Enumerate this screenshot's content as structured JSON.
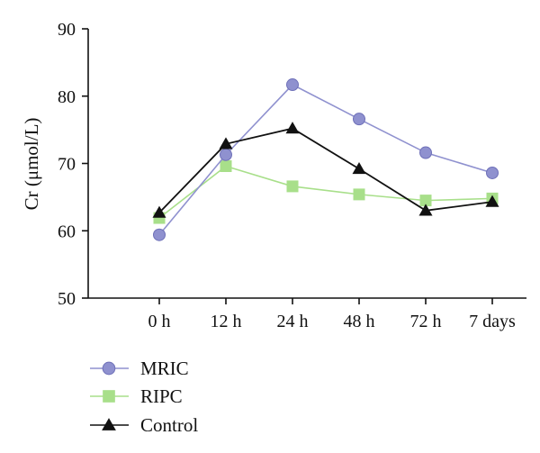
{
  "chart_data": {
    "type": "line",
    "title": "",
    "xlabel": "",
    "ylabel": "Cr (μmol/L)",
    "categories": [
      "0 h",
      "12 h",
      "24 h",
      "48 h",
      "72 h",
      "7 days"
    ],
    "ylim": [
      50,
      90
    ],
    "yticks": [
      50,
      60,
      70,
      80,
      90
    ],
    "grid": false,
    "legend_position": "bottom-left",
    "series": [
      {
        "name": "MRIC",
        "color": "#8f91cf",
        "marker": "circle",
        "values": [
          59.4,
          71.3,
          81.7,
          76.6,
          71.6,
          68.6
        ]
      },
      {
        "name": "RIPC",
        "color": "#a8df8a",
        "marker": "square",
        "values": [
          61.9,
          69.6,
          66.6,
          65.4,
          64.5,
          64.8
        ]
      },
      {
        "name": "Control",
        "color": "#111111",
        "marker": "triangle",
        "values": [
          62.7,
          72.9,
          75.2,
          69.2,
          63.0,
          64.3
        ]
      }
    ]
  }
}
